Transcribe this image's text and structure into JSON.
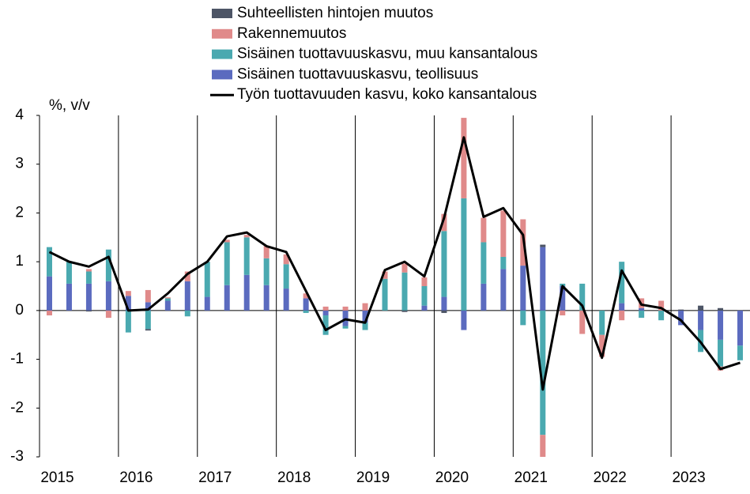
{
  "chart_data": {
    "type": "bar",
    "y_label": "%, v/v",
    "categories": [
      "2015",
      null,
      null,
      null,
      "2016",
      null,
      null,
      null,
      "2017",
      null,
      null,
      null,
      "2018",
      null,
      null,
      null,
      "2019",
      null,
      null,
      null,
      "2020",
      null,
      null,
      null,
      "2021",
      null,
      null,
      null,
      "2022",
      null,
      null,
      null,
      "2023",
      null,
      null,
      null
    ],
    "series": [
      {
        "name": "Suhteellisten hintojen muutos",
        "color": "#4d5566",
        "values": [
          0,
          0,
          -0.02,
          0,
          0,
          -0.03,
          0,
          0,
          0,
          0,
          0,
          0,
          0,
          0,
          0,
          0,
          0,
          0,
          -0.03,
          0,
          -0.05,
          0,
          0,
          0,
          0,
          0.05,
          0,
          0,
          0,
          0,
          0,
          0,
          0.02,
          0.1,
          0.05,
          0
        ]
      },
      {
        "name": "Rakennemuutos",
        "color": "#e08a8a",
        "values": [
          -0.1,
          0,
          0.05,
          -0.15,
          0.1,
          0.25,
          0.02,
          0.2,
          0,
          0.05,
          0.05,
          0.25,
          0.2,
          0.1,
          0.08,
          0.08,
          0.15,
          0.15,
          0.18,
          0.18,
          0.35,
          1.65,
          0.5,
          0.95,
          0.95,
          -0.45,
          -0.1,
          -0.48,
          -0.45,
          -0.2,
          0.2,
          0.2,
          0,
          0,
          -0.08,
          0
        ]
      },
      {
        "name": "Sisäinen tuottavuuskasvu, muu kansantalous",
        "color": "#4aa9b0",
        "values": [
          0.6,
          0.45,
          0.25,
          0.65,
          -0.45,
          -0.38,
          0.05,
          -0.12,
          0.72,
          0.88,
          0.77,
          0.55,
          0.5,
          -0.05,
          -0.4,
          -0.05,
          -0.15,
          0.65,
          0.78,
          0.4,
          1.35,
          2.3,
          0.85,
          0.25,
          -0.3,
          -2.55,
          0.05,
          0.55,
          -0.5,
          0.85,
          -0.15,
          -0.2,
          0,
          -0.45,
          -0.55,
          -0.3
        ]
      },
      {
        "name": "Sisäinen tuottavuuskasvu, teollisuus",
        "color": "#5b6bbf",
        "values": [
          0.7,
          0.55,
          0.55,
          0.6,
          0.3,
          0.17,
          0.2,
          0.6,
          0.28,
          0.52,
          0.73,
          0.52,
          0.45,
          0.25,
          -0.1,
          -0.32,
          -0.25,
          0,
          0,
          0.1,
          0.28,
          -0.4,
          0.55,
          0.85,
          0.92,
          1.3,
          0.5,
          0,
          0,
          0.15,
          0.05,
          0,
          -0.3,
          -0.4,
          -0.6,
          -0.72
        ]
      },
      {
        "name": "Työn tuottavuuden kasvu, koko kansantalous",
        "color": "#000000",
        "type": "line",
        "values": [
          1.2,
          1.0,
          0.9,
          1.1,
          0.0,
          0.02,
          0.35,
          0.75,
          1.0,
          1.52,
          1.6,
          1.32,
          1.2,
          0.4,
          -0.4,
          -0.18,
          -0.25,
          0.83,
          1.0,
          0.7,
          1.9,
          3.55,
          1.92,
          2.1,
          1.55,
          -1.62,
          0.5,
          0.1,
          -0.97,
          0.82,
          0.12,
          0.05,
          -0.2,
          -0.65,
          -1.2,
          -1.07
        ]
      }
    ],
    "ylim": [
      -3,
      4
    ],
    "yticks": [
      -3,
      -2,
      -1,
      0,
      1,
      2,
      3,
      4
    ]
  }
}
